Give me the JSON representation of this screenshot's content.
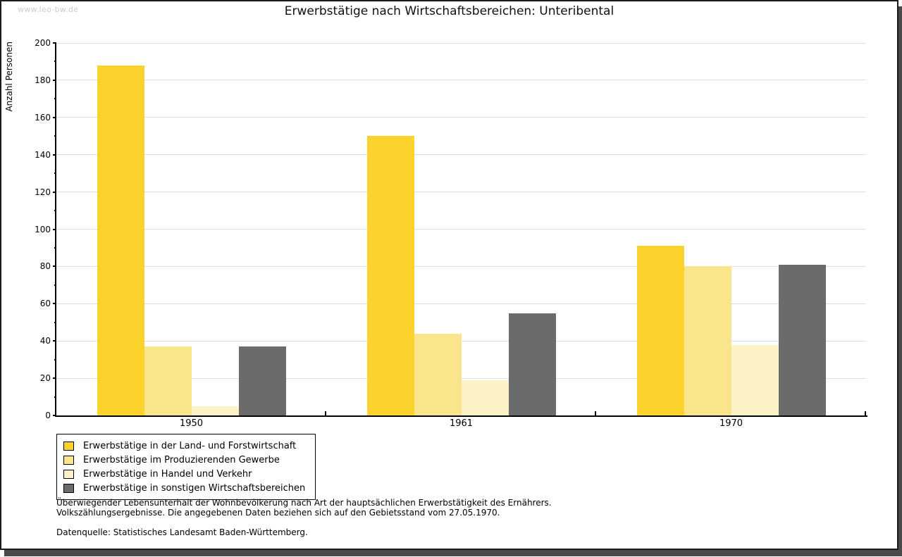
{
  "watermark": "www.leo-bw.de",
  "chart_data": {
    "type": "bar",
    "title": "Erwerbstätige nach Wirtschaftsbereichen: Unteribental",
    "xlabel": "",
    "ylabel": "Anzahl Personen",
    "categories": [
      "1950",
      "1961",
      "1970"
    ],
    "series": [
      {
        "name": "Erwerbstätige in der Land- und Forstwirtschaft",
        "color": "#FCD32D",
        "values": [
          188,
          150,
          91
        ]
      },
      {
        "name": "Erwerbstätige im Produzierenden Gewerbe",
        "color": "#FBE58C",
        "values": [
          37,
          44,
          80
        ]
      },
      {
        "name": "Erwerbstätige in Handel und Verkehr",
        "color": "#FBF2C6",
        "values": [
          5,
          19,
          38
        ]
      },
      {
        "name": "Erwerbstätige in sonstigen Wirtschaftsbereichen",
        "color": "#6B6B6B",
        "values": [
          37,
          55,
          81
        ]
      }
    ],
    "ylim": [
      0,
      200
    ],
    "ytick_step": 20,
    "ytick_minor_step": 10,
    "grid": true,
    "gridline_color": "#dddddd",
    "legend_position": "bottom-left"
  },
  "footer": {
    "line1": "Überwiegender Lebensunterhalt der Wohnbevölkerung nach Art der hauptsächlichen Erwerbstätigkeit des Ernährers.",
    "line2": "Volkszählungsergebnisse. Die angegebenen Daten beziehen sich auf den Gebietsstand vom 27.05.1970.",
    "source": "Datenquelle: Statistisches Landesamt Baden-Württemberg."
  }
}
